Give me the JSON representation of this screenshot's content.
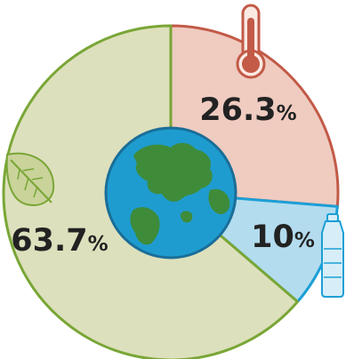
{
  "chart_data": {
    "type": "pie",
    "series": [
      {
        "values": [
          26.3,
          10,
          63.7
        ],
        "labels": [
          "26.3%",
          "10%",
          "63.7%"
        ],
        "icons": [
          "thermometer-icon",
          "water-bottle-icon",
          "leaf-icon"
        ],
        "fills": [
          "#efcbc0",
          "#b3dcee",
          "#dde0bc"
        ],
        "strokes": [
          "#c25a47",
          "#1c9fd6",
          "#79a636"
        ]
      }
    ],
    "center_icon": "globe-icon",
    "globe_colors": {
      "ocean": "#1f9ccf",
      "land": "#3e8b3a"
    }
  }
}
